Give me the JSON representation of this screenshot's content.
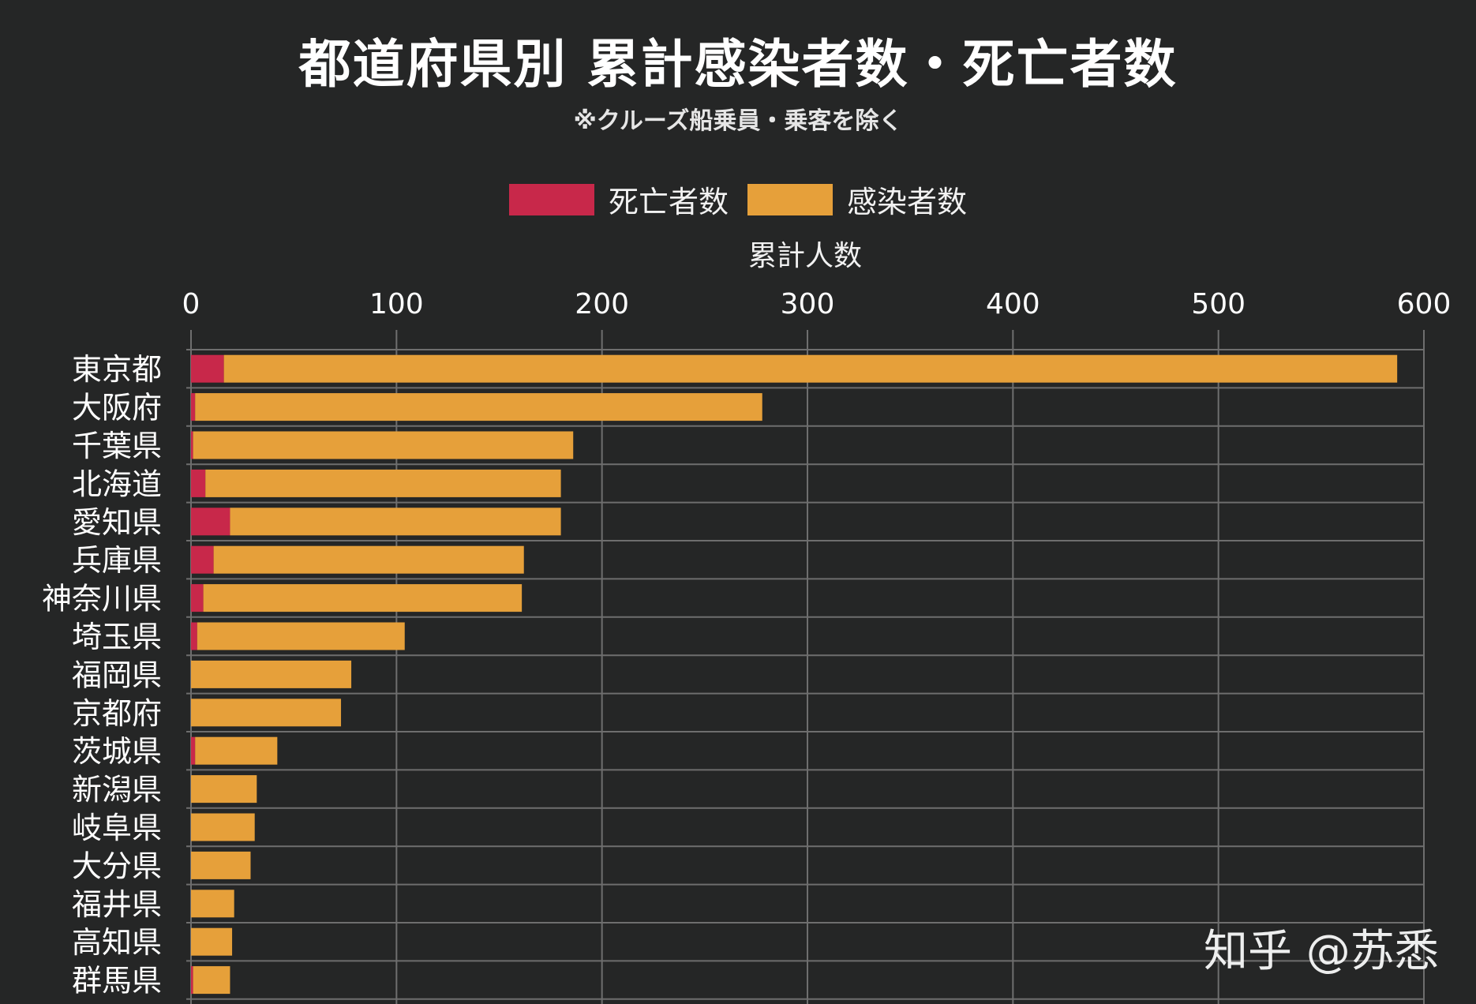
{
  "chart_data": {
    "type": "bar",
    "orientation": "horizontal",
    "stacked": true,
    "title": "都道府県別 累計感染者数・死亡者数",
    "subtitle": "※クルーズ船乗員・乗客を除く",
    "xlabel": "累計人数",
    "xlim": [
      0,
      600
    ],
    "xticks": [
      0,
      100,
      200,
      300,
      400,
      500,
      600
    ],
    "grid": true,
    "legend_position": "top-center",
    "categories": [
      "東京都",
      "大阪府",
      "千葉県",
      "北海道",
      "愛知県",
      "兵庫県",
      "神奈川県",
      "埼玉県",
      "福岡県",
      "京都府",
      "茨城県",
      "新潟県",
      "岐阜県",
      "大分県",
      "福井県",
      "高知県",
      "群馬県"
    ],
    "series": [
      {
        "name": "死亡者数",
        "color": "#c8284a",
        "values": [
          16,
          2,
          1,
          7,
          19,
          11,
          6,
          3,
          0,
          0,
          2,
          0,
          0,
          0,
          0,
          0,
          1
        ]
      },
      {
        "name": "感染者数",
        "color": "#e6a03a",
        "values": [
          571,
          276,
          185,
          173,
          161,
          151,
          155,
          101,
          78,
          73,
          40,
          32,
          31,
          29,
          21,
          20,
          18
        ]
      }
    ]
  },
  "watermark": "知乎 @苏悉"
}
